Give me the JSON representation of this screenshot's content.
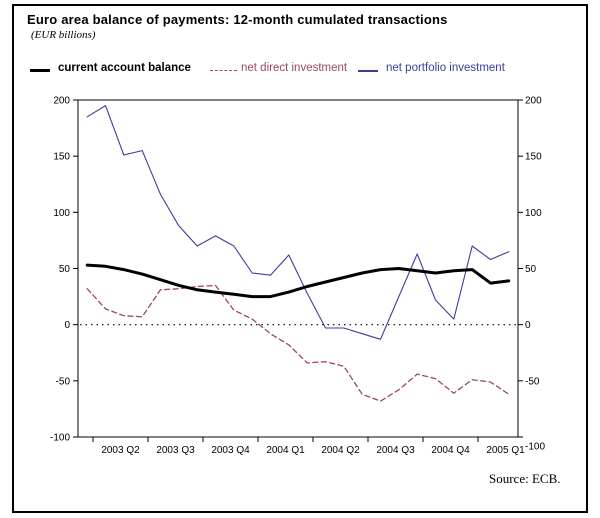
{
  "title": "Euro area balance of payments: 12-month cumulated transactions",
  "subtitle": "(EUR billions)",
  "source": "Source: ECB.",
  "legend": [
    {
      "label": "current account balance",
      "color": "#000000",
      "style": "solid-thick"
    },
    {
      "label": "net direct investment",
      "color": "#9a4763",
      "style": "dashed"
    },
    {
      "label": "net portfolio investment",
      "color": "#3a3f99",
      "style": "solid-thin"
    }
  ],
  "chart_data": {
    "type": "line",
    "title": "Euro area balance of payments: 12-month cumulated transactions",
    "ylabel": "EUR billions",
    "ylim": [
      -100,
      200
    ],
    "y_ticks": [
      200,
      150,
      100,
      50,
      0,
      -50,
      -100
    ],
    "y_axis_sides": "both",
    "grid": false,
    "zero_line": "dotted",
    "x_months": 24,
    "x_tick_labels": [
      "2003 Q2",
      "2003 Q3",
      "2003 Q4",
      "2004 Q1",
      "2004 Q2",
      "2004 Q3",
      "2004 Q4",
      "2005 Q1"
    ],
    "series": [
      {
        "name": "net portfolio investment",
        "color": "#3a3f99",
        "style": "solid",
        "width": 1.1,
        "values": [
          185,
          195,
          151,
          155,
          116,
          88,
          70,
          79,
          70,
          46,
          44,
          62,
          28,
          -3,
          -3,
          -8,
          -13,
          25,
          63,
          22,
          5,
          70,
          58,
          65
        ]
      },
      {
        "name": "net direct investment",
        "color": "#9a4763",
        "style": "dashed",
        "width": 1.3,
        "values": [
          32,
          14,
          8,
          7,
          31,
          32,
          34,
          35,
          13,
          5,
          -8,
          -18,
          -34,
          -33,
          -37,
          -62,
          -68,
          -58,
          -44,
          -48,
          -61,
          -49,
          -51,
          -62
        ]
      },
      {
        "name": "current account balance",
        "color": "#000000",
        "style": "solid",
        "width": 3,
        "values": [
          53,
          52,
          49,
          45,
          40,
          35,
          31,
          29,
          27,
          25,
          25,
          29,
          34,
          38,
          42,
          46,
          49,
          50,
          48,
          46,
          48,
          49,
          37,
          39
        ]
      }
    ]
  }
}
